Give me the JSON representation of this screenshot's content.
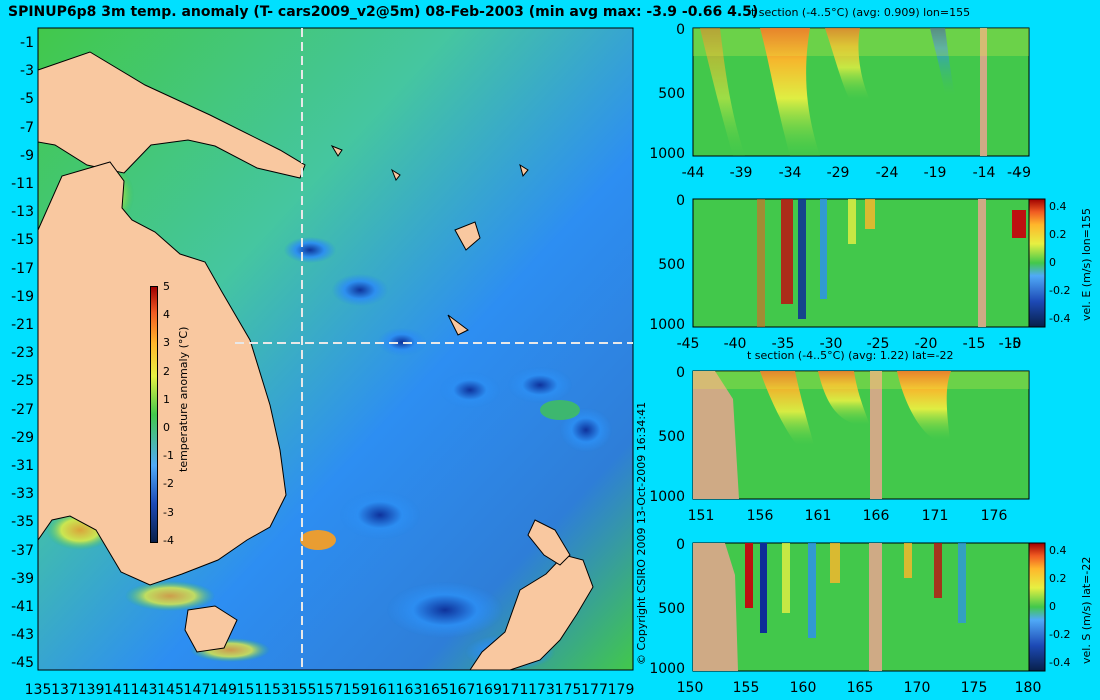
{
  "title": "SPINUP6p8 3m temp. anomaly (T- cars2009_v2@5m) 08-Feb-2003 (min avg max: -3.9 -0.66 4.5)",
  "map": {
    "y_ticks": [
      "-1",
      "-3",
      "-5",
      "-7",
      "-9",
      "-11",
      "-13",
      "-15",
      "-17",
      "-19",
      "-21",
      "-23",
      "-25",
      "-27",
      "-29",
      "-31",
      "-33",
      "-35",
      "-37",
      "-39",
      "-41",
      "-43",
      "-45"
    ],
    "x_ticks": [
      "135",
      "137",
      "139",
      "141",
      "143",
      "145",
      "147",
      "149",
      "151",
      "153",
      "155",
      "157",
      "159",
      "161",
      "163",
      "165",
      "167",
      "169",
      "171",
      "173",
      "175",
      "177",
      "179"
    ],
    "colorbar_ticks": [
      "5",
      "4",
      "3",
      "2",
      "1",
      "0",
      "-1",
      "-2",
      "-3",
      "-4"
    ],
    "colorbar_label": "temperature anomaly (°C)",
    "copyright": "© Copyright CSIRO 2009   13-Oct-2009 16:34:41",
    "colors": {
      "land": "#f9c8a0",
      "deep_blue": "#0d2e98",
      "blue": "#2d8ef2",
      "green": "#42c84b",
      "yellow": "#edf23a",
      "orange": "#ff9f1c",
      "red": "#bd1010",
      "guide": "#e8e8e8"
    }
  },
  "panels": [
    {
      "title": "t section (-4..5°C) (avg: 0.909) lon=155",
      "y_ticks": [
        "0",
        "500",
        "1000"
      ],
      "x_ticks": [
        "-44",
        "-39",
        "-34",
        "-29",
        "-24",
        "-19",
        "-14",
        "-9",
        "-4"
      ],
      "right_label": "",
      "colorbar_ticks": []
    },
    {
      "title": "",
      "y_ticks": [
        "0",
        "500",
        "1000"
      ],
      "x_ticks": [
        "-45",
        "-40",
        "-35",
        "-30",
        "-25",
        "-20",
        "-15",
        "-10",
        "-5"
      ],
      "right_label": "vel. E (m/s) lon=155",
      "colorbar_ticks": [
        "0.4",
        "0.2",
        "0",
        "-0.2",
        "-0.4"
      ]
    },
    {
      "title": "t section (-4..5°C) (avg: 1.22) lat=-22",
      "y_ticks": [
        "0",
        "500",
        "1000"
      ],
      "x_ticks": [
        "151",
        "156",
        "161",
        "166",
        "171",
        "176"
      ],
      "right_label": "",
      "colorbar_ticks": []
    },
    {
      "title": "",
      "y_ticks": [
        "0",
        "500",
        "1000"
      ],
      "x_ticks": [
        "150",
        "155",
        "160",
        "165",
        "170",
        "175",
        "180"
      ],
      "right_label": "vel. S (m/s) lat=-22",
      "colorbar_ticks": [
        "0.4",
        "0.2",
        "0",
        "-0.2",
        "-0.4"
      ]
    }
  ]
}
